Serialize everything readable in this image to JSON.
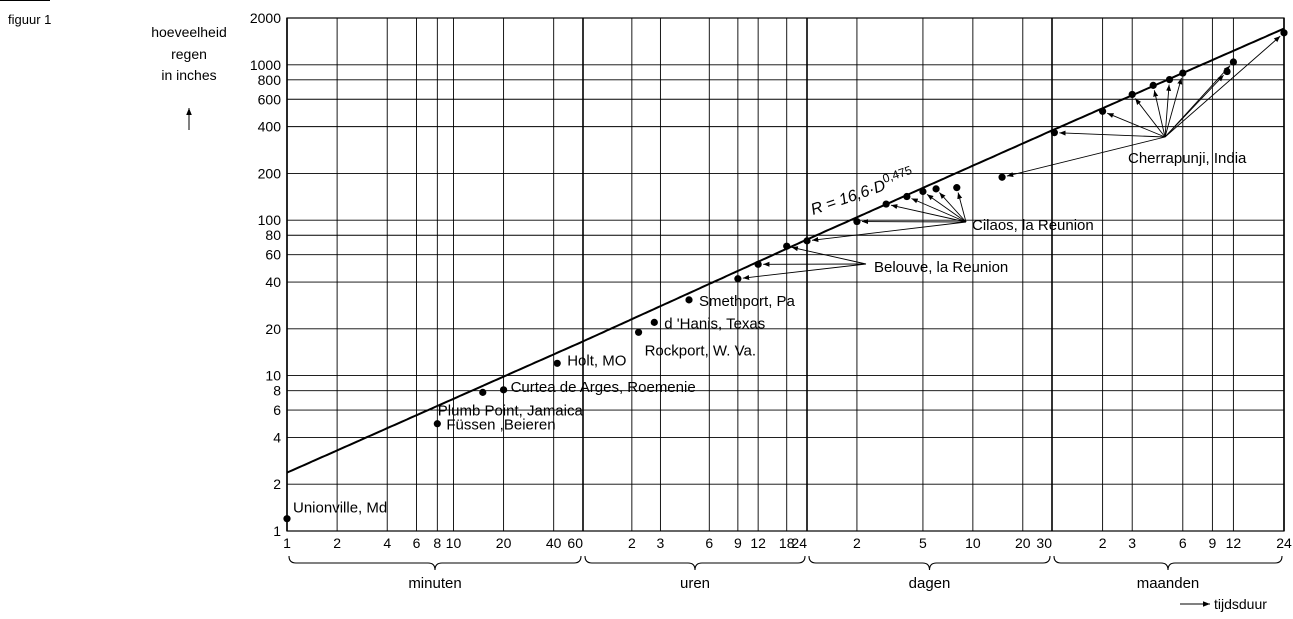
{
  "figure_label": "figuur 1",
  "chart_data": {
    "type": "scatter",
    "x_scale": "log",
    "y_scale": "log",
    "grid": true,
    "ylabel_lines": [
      "hoeveelheid",
      "regen",
      "in inches"
    ],
    "xlabel": "tijdsduur",
    "ylim": [
      1,
      2000
    ],
    "y_ticks": [
      1,
      2,
      4,
      6,
      8,
      10,
      20,
      40,
      60,
      80,
      100,
      200,
      400,
      600,
      800,
      1000,
      2000
    ],
    "x_unit_groups": [
      {
        "label": "minuten",
        "ticks": [
          "1",
          "2",
          "4",
          "6",
          "8",
          "10",
          "20",
          "40",
          "60"
        ]
      },
      {
        "label": "uren",
        "ticks": [
          "2",
          "3",
          "6",
          "9",
          "12",
          "18",
          "24"
        ]
      },
      {
        "label": "dagen",
        "ticks": [
          "2",
          "5",
          "10",
          "20",
          "30"
        ]
      },
      {
        "label": "maanden",
        "ticks": [
          "2",
          "3",
          "6",
          "9",
          "12",
          "24"
        ]
      }
    ],
    "fit_line": {
      "label": "R = 16,6·D",
      "exponent": "0,475",
      "coefficient": 16.6,
      "power": 0.475,
      "x_unit": "hours",
      "y_unit": "inches"
    },
    "station_labels": [
      {
        "name": "Unionville, Md",
        "points": [
          {
            "duration": "1 minuten",
            "rain_in": 1.2
          }
        ]
      },
      {
        "name": "Füssen ,Beieren",
        "points": [
          {
            "duration": "8 minuten",
            "rain_in": 4.9
          }
        ]
      },
      {
        "name": "Plumb Point, Jamaica",
        "points": [
          {
            "duration": "15 minuten",
            "rain_in": 7.8
          }
        ]
      },
      {
        "name": "Curtea de Arges, Roemenie",
        "points": [
          {
            "duration": "20 minuten",
            "rain_in": 8.1
          }
        ]
      },
      {
        "name": "Holt, MO",
        "points": [
          {
            "duration": "42 minuten",
            "rain_in": 12
          }
        ]
      },
      {
        "name": "Rockport, W. Va.",
        "points": [
          {
            "duration": "2.2 uren",
            "rain_in": 19
          }
        ]
      },
      {
        "name": "d 'Hanis, Texas",
        "points": [
          {
            "duration": "2.75 uren",
            "rain_in": 22
          }
        ]
      },
      {
        "name": "Smethport, Pa",
        "points": [
          {
            "duration": "4.5 uren",
            "rain_in": 30.7
          }
        ]
      },
      {
        "name": "Belouve, la Reunion",
        "points": [
          {
            "duration": "9 uren",
            "rain_in": 42
          },
          {
            "duration": "12 uren",
            "rain_in": 52
          },
          {
            "duration": "18 uren",
            "rain_in": 68
          }
        ]
      },
      {
        "name": "Cilaos, la Reunion",
        "points": [
          {
            "duration": "24 uren",
            "rain_in": 73.6
          },
          {
            "duration": "2 dagen",
            "rain_in": 98
          },
          {
            "duration": "3 dagen",
            "rain_in": 127
          },
          {
            "duration": "4 dagen",
            "rain_in": 142
          },
          {
            "duration": "5 dagen",
            "rain_in": 153
          },
          {
            "duration": "6 dagen",
            "rain_in": 159
          },
          {
            "duration": "8 dagen",
            "rain_in": 162
          }
        ]
      },
      {
        "name": "Cherrapunji, India",
        "points": [
          {
            "duration": "15 dagen",
            "rain_in": 189
          },
          {
            "duration": "31 dagen",
            "rain_in": 366
          },
          {
            "duration": "2 maanden",
            "rain_in": 502
          },
          {
            "duration": "3 maanden",
            "rain_in": 644
          },
          {
            "duration": "4 maanden",
            "rain_in": 737
          },
          {
            "duration": "5 maanden",
            "rain_in": 803
          },
          {
            "duration": "6 maanden",
            "rain_in": 884
          },
          {
            "duration": "11 maanden",
            "rain_in": 905
          },
          {
            "duration": "12 maanden",
            "rain_in": 1042
          },
          {
            "duration": "24 maanden",
            "rain_in": 1605
          }
        ]
      }
    ]
  }
}
